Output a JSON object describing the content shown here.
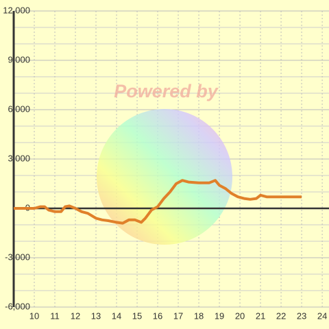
{
  "chart_data": {
    "type": "line",
    "watermark": "Powered by",
    "x": [
      9.0,
      10.0,
      10.3,
      10.5,
      10.7,
      11.0,
      11.3,
      11.5,
      11.7,
      12.0,
      12.3,
      12.6,
      13.0,
      13.3,
      13.6,
      14.0,
      14.3,
      14.6,
      14.9,
      15.2,
      15.4,
      15.7,
      16.0,
      16.3,
      16.6,
      16.9,
      17.2,
      17.5,
      18.0,
      18.5,
      18.8,
      19.0,
      19.3,
      19.6,
      19.9,
      20.2,
      20.5,
      20.8,
      21.0,
      21.3,
      22.0,
      23.0
    ],
    "series": [
      {
        "color": "#e0802a",
        "values": [
          0,
          0,
          100,
          100,
          -100,
          -200,
          -200,
          100,
          150,
          0,
          -200,
          -300,
          -600,
          -700,
          -750,
          -850,
          -900,
          -700,
          -700,
          -850,
          -600,
          -100,
          100,
          600,
          1000,
          1500,
          1700,
          1600,
          1550,
          1550,
          1700,
          1400,
          1200,
          900,
          700,
          600,
          550,
          600,
          800,
          700,
          700,
          700
        ]
      }
    ],
    "xlim": [
      9,
      24.33
    ],
    "xticks": [
      10,
      11,
      12,
      13,
      14,
      15,
      16,
      17,
      18,
      19,
      20,
      21,
      22,
      23,
      24
    ],
    "ylim": [
      -6000,
      12000
    ],
    "yticks": [
      {
        "value": -6000,
        "label": "-6,000"
      },
      {
        "value": -3000,
        "label": "-3,000"
      },
      0,
      {
        "value": 3000,
        "label": "3,000"
      },
      {
        "value": 6000,
        "label": "6,000"
      },
      {
        "value": 9000,
        "label": "9,000"
      },
      {
        "value": 12000,
        "label": "12,000"
      }
    ],
    "minor_yticks": [
      -5000,
      -4000,
      -2000,
      -1000,
      1000,
      2000,
      4000,
      5000,
      7000,
      8000,
      10000,
      11000
    ],
    "grid": true
  }
}
